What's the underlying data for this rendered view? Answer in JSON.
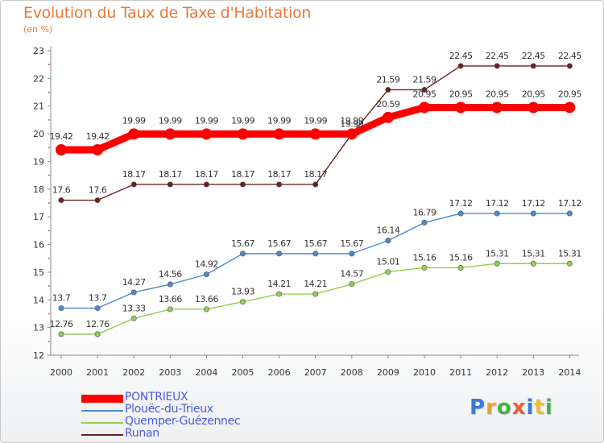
{
  "header": {
    "title": "Evolution du Taux de Taxe d'Habitation",
    "unit": "(en %)"
  },
  "brand": {
    "logo_text": "Proxiti",
    "letter_colors": [
      "#3a7ad8",
      "#e8a030",
      "#48b048",
      "#e86030",
      "#3a7ad8",
      "#e8c030",
      "#48b048"
    ]
  },
  "chart_data": {
    "type": "line",
    "title": "Evolution du Taux de Taxe d'Habitation",
    "ylabel": "(en %)",
    "xlabel": "",
    "x": [
      "2000",
      "2001",
      "2002",
      "2003",
      "2004",
      "2005",
      "2006",
      "2007",
      "2008",
      "2009",
      "2010",
      "2011",
      "2012",
      "2013",
      "2014"
    ],
    "ylim": [
      12,
      23
    ],
    "yticks": [
      "12",
      "13",
      "14",
      "15",
      "16",
      "17",
      "18",
      "19",
      "20",
      "21",
      "22",
      "23"
    ],
    "grid": false,
    "legend_position": "bottom-left",
    "series": [
      {
        "name": "PONTRIEUX",
        "color": "#ff0000",
        "values": [
          19.42,
          19.42,
          19.99,
          19.99,
          19.99,
          19.99,
          19.99,
          19.99,
          19.99,
          20.59,
          20.95,
          20.95,
          20.95,
          20.95,
          20.95
        ],
        "labels": [
          "19.42",
          "19.42",
          "19.99",
          "19.99",
          "19.99",
          "19.99",
          "19.99",
          "19.99",
          "19.99",
          "20.59",
          "20.95",
          "20.95",
          "20.95",
          "20.95",
          "20.95"
        ]
      },
      {
        "name": "Plouëc-du-Trieux",
        "color": "#4a8ad0",
        "values": [
          13.7,
          13.7,
          14.27,
          14.56,
          14.92,
          15.67,
          15.67,
          15.67,
          15.67,
          16.14,
          16.79,
          17.12,
          17.12,
          17.12,
          17.12
        ],
        "labels": [
          "13.7",
          "13.7",
          "14.27",
          "14.56",
          "14.92",
          "15.67",
          "15.67",
          "15.67",
          "15.67",
          "16.14",
          "16.79",
          "17.12",
          "17.12",
          "17.12",
          "17.12"
        ]
      },
      {
        "name": "Quemper-Guézennec",
        "color": "#90d050",
        "values": [
          12.76,
          12.76,
          13.33,
          13.66,
          13.66,
          13.93,
          14.21,
          14.21,
          14.57,
          15.01,
          15.16,
          15.16,
          15.31,
          15.31,
          15.31
        ],
        "labels": [
          "12.76",
          "12.76",
          "13.33",
          "13.66",
          "13.66",
          "13.93",
          "14.21",
          "14.21",
          "14.57",
          "15.01",
          "15.16",
          "15.16",
          "15.31",
          "15.31",
          "15.31"
        ]
      },
      {
        "name": "Runan",
        "color": "#702020",
        "values": [
          17.6,
          17.6,
          18.17,
          18.17,
          18.17,
          18.17,
          18.17,
          18.17,
          19.99,
          21.59,
          21.59,
          22.45,
          22.45,
          22.45,
          22.45
        ],
        "labels": [
          "17.6",
          "17.6",
          "18.17",
          "18.17",
          "18.17",
          "18.17",
          "18.17",
          "18.17",
          "19.99",
          "21.59",
          "21.59",
          "22.45",
          "22.45",
          "22.45",
          "22.45"
        ]
      }
    ]
  }
}
